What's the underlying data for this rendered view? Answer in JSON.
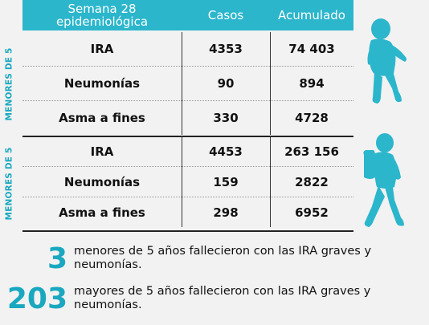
{
  "header": {
    "col1": "Semana 28 epidemiológica",
    "col2": "Casos",
    "col3": "Acumulado"
  },
  "groups": [
    {
      "label": "MENORES DE 5",
      "rows": [
        {
          "name": "IRA",
          "casos": "4353",
          "acumulado": "74 403"
        },
        {
          "name": "Neumonías",
          "casos": "90",
          "acumulado": "894"
        },
        {
          "name": "Asma a fines",
          "casos": "330",
          "acumulado": "4728"
        }
      ]
    },
    {
      "label": "MENORES DE 5",
      "rows": [
        {
          "name": "IRA",
          "casos": "4453",
          "acumulado": "263 156"
        },
        {
          "name": "Neumonías",
          "casos": "159",
          "acumulado": "2822"
        },
        {
          "name": "Asma a fines",
          "casos": "298",
          "acumulado": "6952"
        }
      ]
    }
  ],
  "stats": [
    {
      "number": "3",
      "text": "menores de 5 años fallecieron con las IRA graves y neumonías."
    },
    {
      "number": "203",
      "text": "mayores de 5 años fallecieron con las IRA graves y neumonías."
    }
  ],
  "icons": {
    "toddler": "toddler-silhouette-icon",
    "child": "schoolchild-silhouette-icon"
  },
  "colors": {
    "accent": "#2bb6cc",
    "label": "#1aa8c0"
  }
}
